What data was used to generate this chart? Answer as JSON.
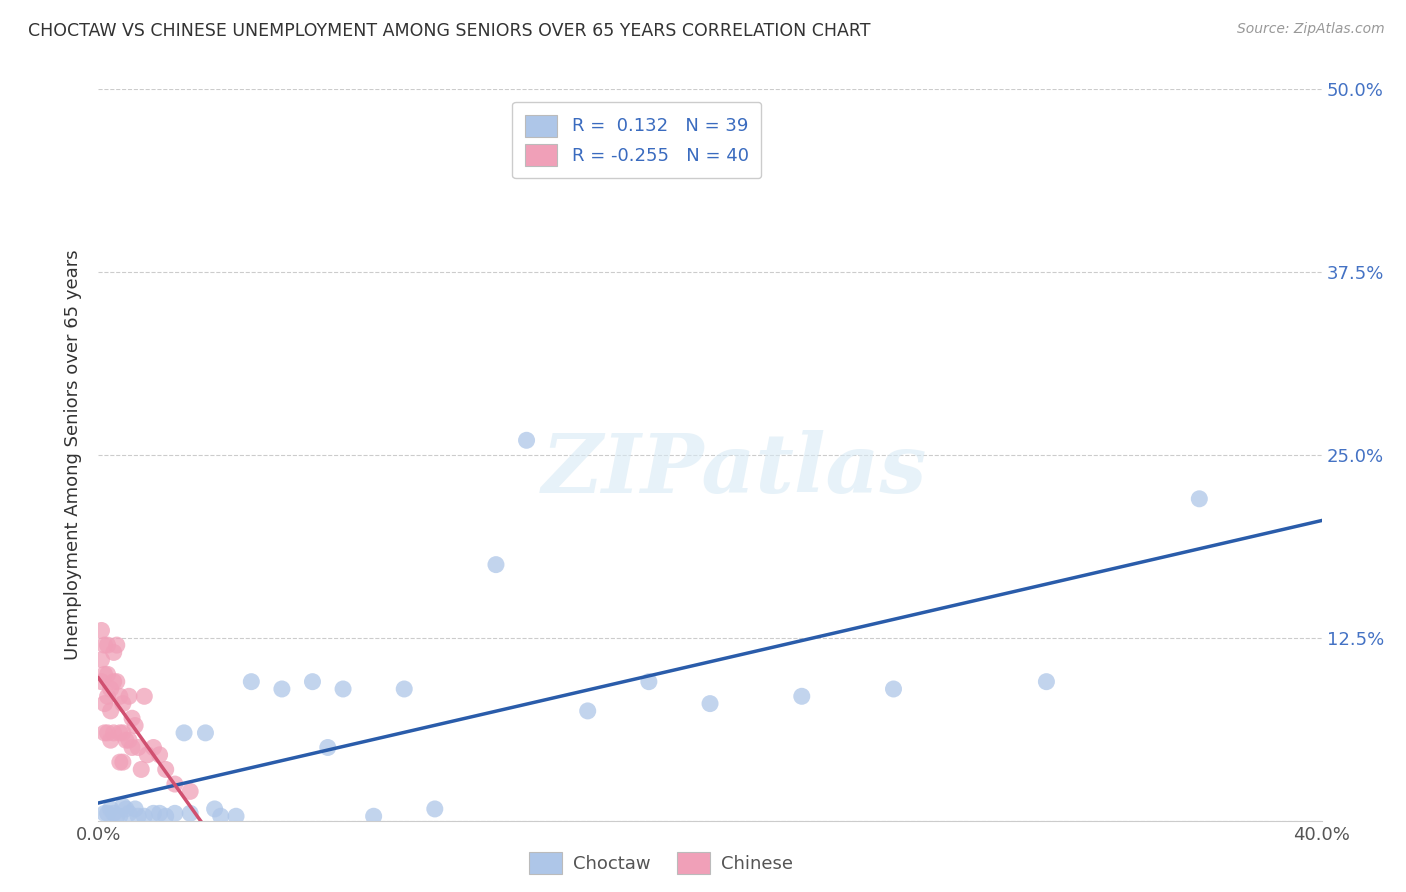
{
  "title": "CHOCTAW VS CHINESE UNEMPLOYMENT AMONG SENIORS OVER 65 YEARS CORRELATION CHART",
  "source": "Source: ZipAtlas.com",
  "ylabel": "Unemployment Among Seniors over 65 years",
  "xlim": [
    0.0,
    0.4
  ],
  "ylim": [
    0.0,
    0.5
  ],
  "xticks": [
    0.0,
    0.1,
    0.2,
    0.3,
    0.4
  ],
  "yticks": [
    0.0,
    0.125,
    0.25,
    0.375,
    0.5
  ],
  "right_ytick_labels": [
    "",
    "12.5%",
    "25.0%",
    "37.5%",
    "50.0%"
  ],
  "xtick_labels": [
    "0.0%",
    "",
    "",
    "",
    "40.0%"
  ],
  "choctaw_R": 0.132,
  "choctaw_N": 39,
  "chinese_R": -0.255,
  "chinese_N": 40,
  "choctaw_color": "#aec6e8",
  "chinese_color": "#f0a0b8",
  "choctaw_line_color": "#2a5caa",
  "chinese_line_color": "#d05070",
  "watermark": "ZIPatlas",
  "choctaw_x": [
    0.002,
    0.003,
    0.004,
    0.005,
    0.006,
    0.007,
    0.008,
    0.009,
    0.01,
    0.012,
    0.013,
    0.015,
    0.018,
    0.02,
    0.022,
    0.025,
    0.028,
    0.03,
    0.035,
    0.038,
    0.04,
    0.045,
    0.05,
    0.06,
    0.07,
    0.075,
    0.08,
    0.09,
    0.1,
    0.11,
    0.13,
    0.14,
    0.16,
    0.18,
    0.2,
    0.23,
    0.26,
    0.31,
    0.36
  ],
  "choctaw_y": [
    0.005,
    0.005,
    0.008,
    0.005,
    0.003,
    0.003,
    0.01,
    0.008,
    0.005,
    0.008,
    0.003,
    0.003,
    0.005,
    0.005,
    0.003,
    0.005,
    0.06,
    0.005,
    0.06,
    0.008,
    0.003,
    0.003,
    0.095,
    0.09,
    0.095,
    0.05,
    0.09,
    0.003,
    0.09,
    0.008,
    0.175,
    0.26,
    0.075,
    0.095,
    0.08,
    0.085,
    0.09,
    0.095,
    0.22
  ],
  "chinese_x": [
    0.001,
    0.001,
    0.001,
    0.002,
    0.002,
    0.002,
    0.002,
    0.003,
    0.003,
    0.003,
    0.003,
    0.004,
    0.004,
    0.004,
    0.005,
    0.005,
    0.005,
    0.006,
    0.006,
    0.007,
    0.007,
    0.007,
    0.008,
    0.008,
    0.008,
    0.009,
    0.01,
    0.01,
    0.011,
    0.011,
    0.012,
    0.013,
    0.014,
    0.015,
    0.016,
    0.018,
    0.02,
    0.022,
    0.025,
    0.03
  ],
  "chinese_y": [
    0.13,
    0.11,
    0.095,
    0.12,
    0.1,
    0.08,
    0.06,
    0.12,
    0.1,
    0.085,
    0.06,
    0.09,
    0.075,
    0.055,
    0.115,
    0.095,
    0.06,
    0.12,
    0.095,
    0.085,
    0.06,
    0.04,
    0.08,
    0.06,
    0.04,
    0.055,
    0.085,
    0.055,
    0.07,
    0.05,
    0.065,
    0.05,
    0.035,
    0.085,
    0.045,
    0.05,
    0.045,
    0.035,
    0.025,
    0.02
  ]
}
